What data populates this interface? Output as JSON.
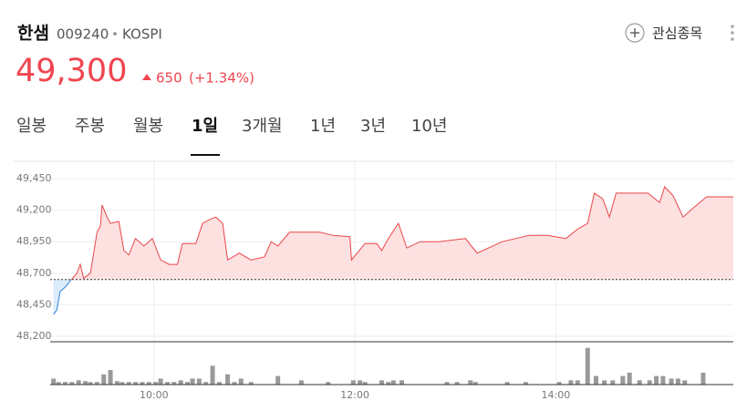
{
  "header": {
    "name": "한샘",
    "code": "009240",
    "market": "KOSPI",
    "price": "49,300",
    "change": "650",
    "change_rate": "(+1.34%)",
    "watch": "관심종목"
  },
  "tabs": {
    "items": [
      "일봉",
      "주봉",
      "월봉",
      "1일",
      "3개월",
      "1년",
      "3년",
      "10년"
    ],
    "active": 3
  },
  "chart_data": [
    {
      "type": "line",
      "color": "#e8474a",
      "color_below": "#2f86e0",
      "fill": "#fde0e0",
      "fill_below": "#dcebfa",
      "baseline": 48650,
      "x": [
        0,
        2,
        4,
        7,
        10,
        14,
        16,
        18,
        22,
        26,
        28,
        29,
        32,
        34,
        39,
        42,
        45,
        49,
        54,
        59,
        64,
        69,
        74,
        77,
        85,
        89,
        94,
        97,
        101,
        104,
        111,
        118,
        126,
        130,
        134,
        141,
        148,
        159,
        167,
        177,
        178,
        186,
        193,
        196,
        200,
        206,
        211,
        219,
        230,
        246,
        253,
        268,
        276,
        284,
        295,
        306,
        313,
        319,
        323,
        328,
        332,
        336,
        344,
        355,
        362,
        365,
        370,
        376,
        381,
        390,
        406
      ],
      "values": [
        48373,
        48410,
        48555,
        48590,
        48640,
        48700,
        48770,
        48660,
        48700,
        49025,
        49075,
        49240,
        49145,
        49095,
        49110,
        48880,
        48845,
        48975,
        48915,
        48975,
        48805,
        48770,
        48770,
        48935,
        48935,
        49095,
        49130,
        49145,
        49095,
        48805,
        48860,
        48805,
        48830,
        48950,
        48915,
        49025,
        49025,
        49025,
        49000,
        48990,
        48805,
        48935,
        48935,
        48880,
        48975,
        49095,
        48900,
        48950,
        48950,
        48975,
        48860,
        48950,
        48975,
        49000,
        49000,
        48975,
        49050,
        49095,
        49335,
        49290,
        49145,
        49335,
        49335,
        49335,
        49260,
        49385,
        49315,
        49145,
        49205,
        49305,
        49305
      ],
      "xlim": [
        -2,
        406
      ],
      "ylim": [
        48157,
        49587
      ],
      "yticks": [
        {
          "value": 48200,
          "label": "48,200"
        },
        {
          "value": 48450,
          "label": "48,450"
        },
        {
          "value": 48700,
          "label": "48,700"
        },
        {
          "value": 48950,
          "label": "48,950"
        },
        {
          "value": 49200,
          "label": "49,200"
        },
        {
          "value": 49450,
          "label": "49,450"
        }
      ],
      "xticks": [
        {
          "value": 60,
          "label": "10:00"
        },
        {
          "value": 180,
          "label": "12:00"
        },
        {
          "value": 300,
          "label": "14:00"
        }
      ],
      "grid": true
    },
    {
      "type": "bar",
      "color": "#999999",
      "xlim": [
        -2,
        406
      ],
      "ylim": [
        0,
        47
      ],
      "x": [
        0,
        3,
        7,
        11,
        15,
        19,
        22,
        26,
        30,
        34,
        38,
        41,
        45,
        49,
        53,
        57,
        61,
        64,
        68,
        72,
        76,
        80,
        83,
        87,
        91,
        95,
        99,
        104,
        108,
        112,
        118,
        134,
        148,
        164,
        179,
        183,
        186,
        196,
        200,
        203,
        208,
        235,
        241,
        249,
        252,
        271,
        282,
        302,
        309,
        313,
        319,
        324,
        329,
        334,
        340,
        344,
        350,
        356,
        360,
        364,
        369,
        373,
        377,
        388
      ],
      "values": [
        7,
        3,
        3,
        3,
        5,
        4,
        3,
        3,
        12,
        17,
        4,
        3,
        3,
        3,
        3,
        3,
        3,
        7,
        3,
        3,
        5,
        3,
        7,
        7,
        3,
        22,
        3,
        12,
        3,
        7,
        3,
        10,
        5,
        3,
        5,
        5,
        3,
        5,
        3,
        5,
        5,
        3,
        3,
        5,
        3,
        3,
        3,
        3,
        5,
        5,
        43,
        10,
        5,
        5,
        10,
        14,
        5,
        5,
        10,
        10,
        7,
        7,
        5,
        14
      ]
    }
  ]
}
